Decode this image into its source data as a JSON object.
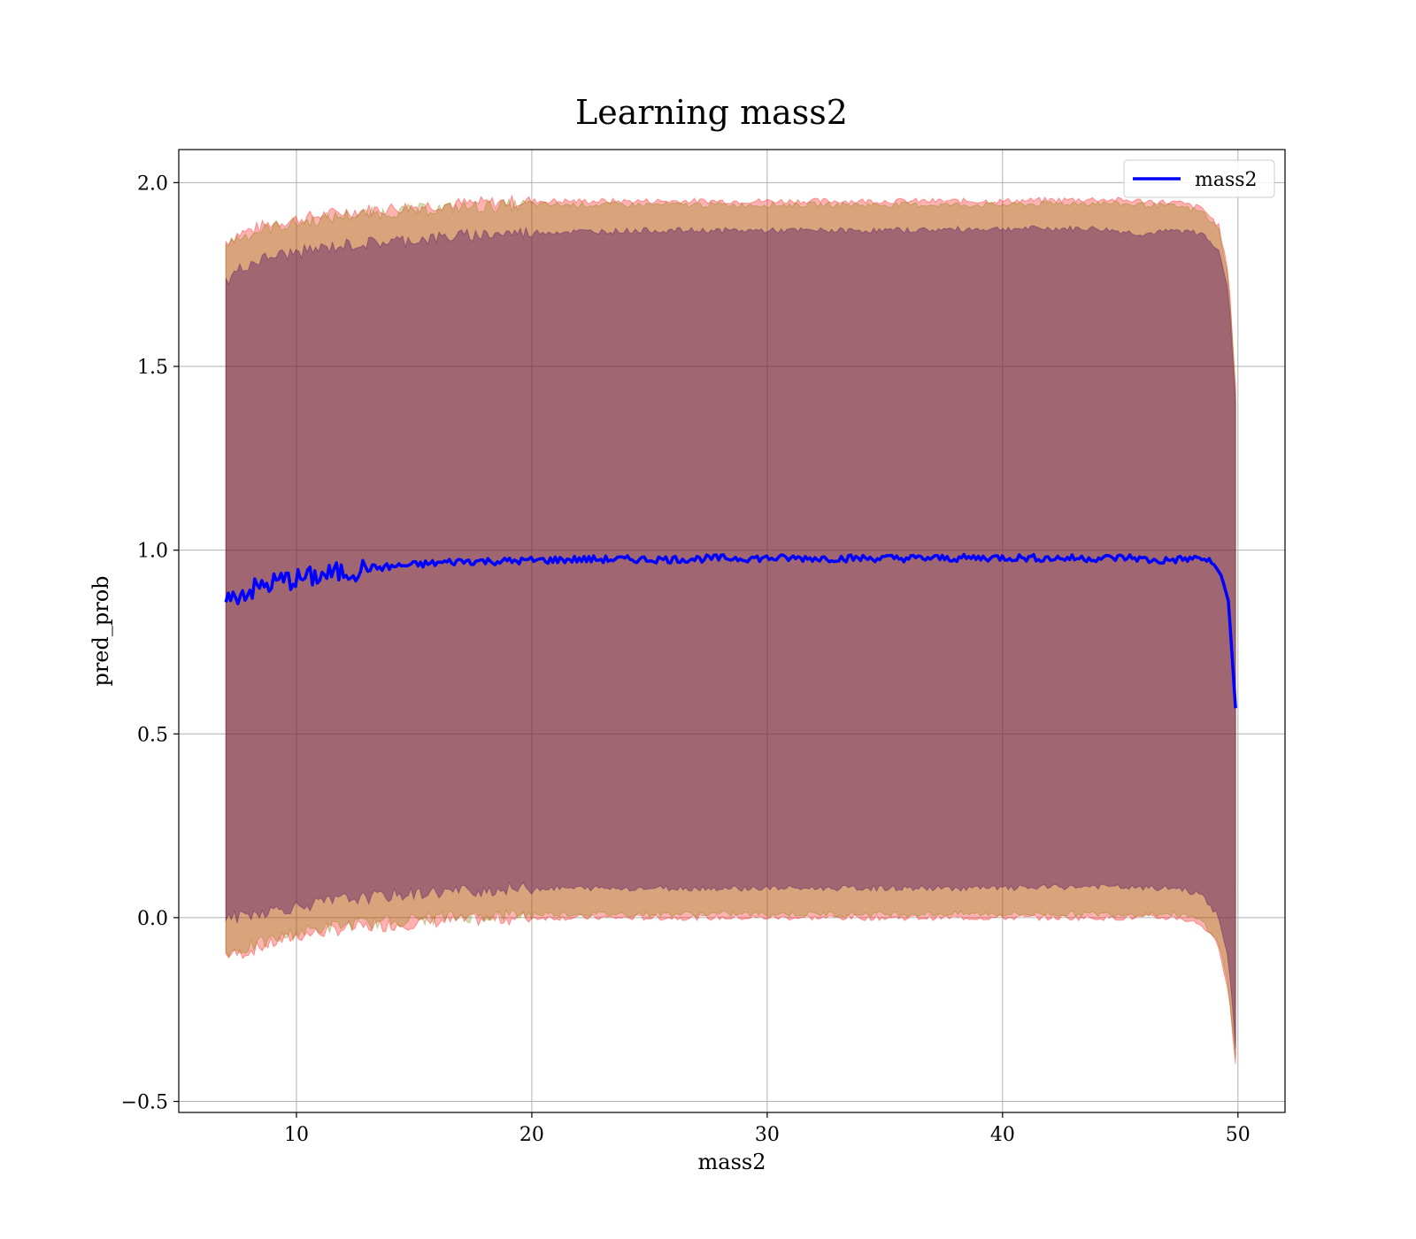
{
  "chart_data": {
    "type": "line",
    "title": "Learning mass2",
    "xlabel": "mass2",
    "ylabel": "pred_prob",
    "xlim": [
      5,
      52
    ],
    "ylim": [
      -0.53,
      2.09
    ],
    "xticks": [
      10,
      20,
      30,
      40,
      50
    ],
    "yticks": [
      -0.5,
      0.0,
      0.5,
      1.0,
      1.5,
      2.0
    ],
    "ytick_labels": [
      "−0.5",
      "0.0",
      "0.5",
      "1.0",
      "1.5",
      "2.0"
    ],
    "grid": true,
    "legend_position": "top-right",
    "series": [
      {
        "name": "mass2",
        "color": "#0000ff",
        "x": [
          7.0,
          7.2,
          7.5,
          8.0,
          8.5,
          9.0,
          9.5,
          10.0,
          11.0,
          12.0,
          13.0,
          14.0,
          15.0,
          16.0,
          17.0,
          18.0,
          19.0,
          20.0,
          22.0,
          24.0,
          26.0,
          28.0,
          30.0,
          32.0,
          34.0,
          36.0,
          38.0,
          40.0,
          42.0,
          44.0,
          45.5,
          46.5,
          47.5,
          48.5,
          49.0,
          49.3,
          49.6,
          49.9
        ],
        "y": [
          0.88,
          0.86,
          0.88,
          0.89,
          0.9,
          0.91,
          0.92,
          0.92,
          0.93,
          0.94,
          0.95,
          0.955,
          0.96,
          0.965,
          0.97,
          0.97,
          0.97,
          0.972,
          0.975,
          0.975,
          0.975,
          0.978,
          0.978,
          0.978,
          0.978,
          0.978,
          0.978,
          0.98,
          0.978,
          0.978,
          0.98,
          0.97,
          0.975,
          0.978,
          0.96,
          0.93,
          0.86,
          0.57
        ]
      }
    ],
    "bands": [
      {
        "name": "",
        "color": "#ff0000",
        "opacity": 0.3,
        "x": [
          7.0,
          7.5,
          8.0,
          9.0,
          10.0,
          12.0,
          14.0,
          16.0,
          18.0,
          20.0,
          25.0,
          30.0,
          35.0,
          40.0,
          44.0,
          46.0,
          47.5,
          48.5,
          49.2,
          49.6,
          49.9
        ],
        "upper": [
          1.84,
          1.86,
          1.87,
          1.89,
          1.9,
          1.92,
          1.93,
          1.94,
          1.945,
          1.95,
          1.95,
          1.95,
          1.95,
          1.95,
          1.955,
          1.95,
          1.945,
          1.93,
          1.88,
          1.75,
          1.45
        ],
        "lower": [
          -0.1,
          -0.1,
          -0.09,
          -0.07,
          -0.05,
          -0.03,
          -0.02,
          -0.01,
          -0.005,
          0.0,
          0.0,
          0.0,
          0.0,
          0.0,
          0.0,
          0.0,
          0.0,
          -0.02,
          -0.08,
          -0.2,
          -0.4
        ]
      },
      {
        "name": "",
        "color": "#808000",
        "opacity": 0.3,
        "x": [
          7.0,
          7.5,
          8.0,
          9.0,
          10.0,
          12.0,
          14.0,
          16.0,
          18.0,
          20.0,
          25.0,
          30.0,
          35.0,
          40.0,
          44.0,
          46.0,
          47.5,
          48.5,
          49.2,
          49.6,
          49.9
        ],
        "upper": [
          1.83,
          1.85,
          1.86,
          1.88,
          1.89,
          1.91,
          1.92,
          1.93,
          1.935,
          1.94,
          1.94,
          1.94,
          1.94,
          1.94,
          1.945,
          1.94,
          1.935,
          1.92,
          1.87,
          1.74,
          1.43
        ],
        "lower": [
          -0.09,
          -0.09,
          -0.08,
          -0.06,
          -0.04,
          -0.02,
          -0.01,
          0.0,
          0.005,
          0.01,
          0.01,
          0.01,
          0.01,
          0.01,
          0.01,
          0.01,
          0.01,
          -0.01,
          -0.07,
          -0.19,
          -0.38
        ]
      },
      {
        "name": "",
        "color": "#4b0a64",
        "opacity": 0.4,
        "x": [
          7.0,
          7.5,
          8.0,
          9.0,
          10.0,
          12.0,
          14.0,
          16.0,
          18.0,
          20.0,
          25.0,
          30.0,
          35.0,
          40.0,
          44.0,
          46.0,
          47.5,
          48.5,
          49.2,
          49.6,
          49.9
        ],
        "upper": [
          1.73,
          1.76,
          1.78,
          1.8,
          1.81,
          1.83,
          1.84,
          1.85,
          1.86,
          1.865,
          1.87,
          1.87,
          1.87,
          1.875,
          1.875,
          1.86,
          1.87,
          1.86,
          1.82,
          1.7,
          1.4
        ],
        "lower": [
          0.0,
          0.0,
          0.01,
          0.02,
          0.03,
          0.05,
          0.06,
          0.07,
          0.075,
          0.08,
          0.08,
          0.08,
          0.08,
          0.08,
          0.085,
          0.08,
          0.08,
          0.06,
          0.0,
          -0.12,
          -0.35
        ]
      }
    ]
  }
}
